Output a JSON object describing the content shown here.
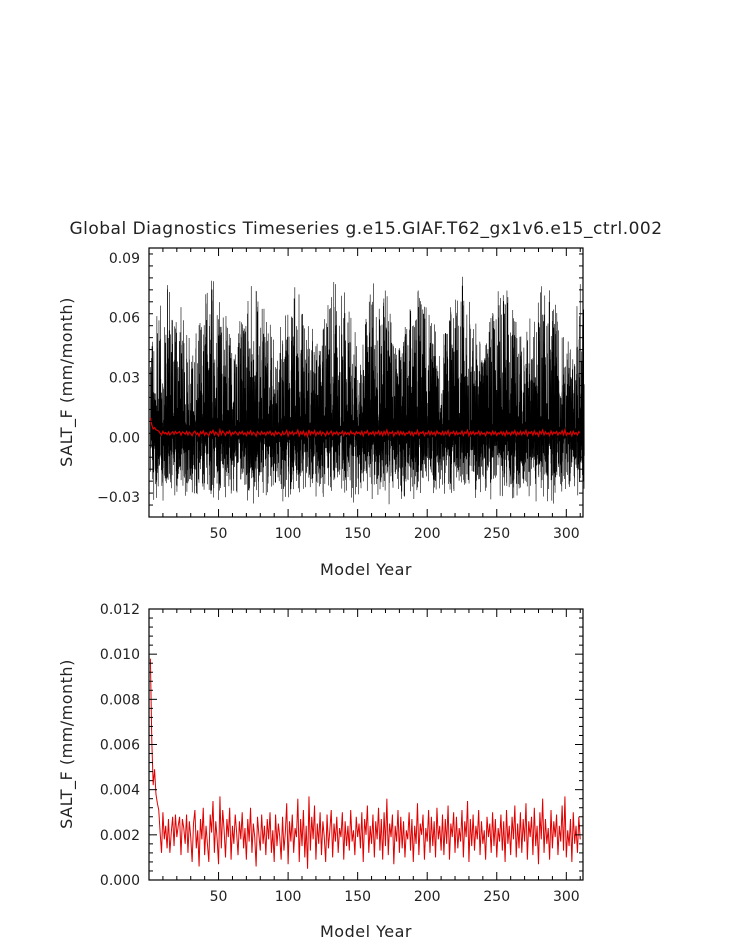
{
  "title": "Global Diagnostics Timeseries g.e15.GIAF.T62_gx1v6.e15_ctrl.002",
  "colors": {
    "monthly": "#000000",
    "annual": "#e00000"
  },
  "chart_data": [
    {
      "type": "line",
      "xlabel": "Model Year",
      "ylabel": "SALT_F (mm/month)",
      "xlim": [
        0,
        312
      ],
      "ylim": [
        -0.04,
        0.095
      ],
      "xticks": [
        50,
        100,
        150,
        200,
        250,
        300
      ],
      "xtick_labels": [
        "50",
        "100",
        "150",
        "200",
        "250",
        "300"
      ],
      "yticks": [
        -0.03,
        0.0,
        0.03,
        0.06,
        0.09
      ],
      "ytick_labels": [
        "−0.03",
        "0.00",
        "0.03",
        "0.06",
        "0.09"
      ],
      "series": [
        {
          "color": "#000000",
          "kind": "monthly",
          "approx_range": [
            -0.035,
            0.082
          ]
        },
        {
          "color": "#e00000",
          "kind": "annual",
          "source": "annual_values"
        }
      ]
    },
    {
      "type": "line",
      "xlabel": "Model Year",
      "ylabel": "SALT_F (mm/month)",
      "xlim": [
        0,
        312
      ],
      "ylim": [
        0.0,
        0.012
      ],
      "xticks": [
        50,
        100,
        150,
        200,
        250,
        300
      ],
      "xtick_labels": [
        "50",
        "100",
        "150",
        "200",
        "250",
        "300"
      ],
      "yticks": [
        0.0,
        0.002,
        0.004,
        0.006,
        0.008,
        0.01,
        0.012
      ],
      "ytick_labels": [
        "0.000",
        "0.002",
        "0.004",
        "0.006",
        "0.008",
        "0.010",
        "0.012"
      ],
      "series": [
        {
          "color": "#e00000",
          "kind": "annual",
          "source": "annual_values"
        }
      ]
    }
  ],
  "annual_values": {
    "x_start": 1,
    "values": [
      0.0098,
      0.0062,
      0.0042,
      0.0049,
      0.0038,
      0.0034,
      0.0031,
      0.0021,
      0.0012,
      0.003,
      0.0018,
      0.0024,
      0.0014,
      0.0027,
      0.0012,
      0.0021,
      0.0028,
      0.0015,
      0.0029,
      0.0019,
      0.0024,
      0.0028,
      0.0011,
      0.0027,
      0.0023,
      0.0016,
      0.0029,
      0.0012,
      0.0026,
      0.0019,
      0.0008,
      0.0025,
      0.0031,
      0.0014,
      0.0022,
      0.0006,
      0.0027,
      0.0018,
      0.0032,
      0.0011,
      0.0024,
      0.0016,
      0.0008,
      0.0029,
      0.0021,
      0.0035,
      0.0012,
      0.0026,
      0.0018,
      0.0007,
      0.0037,
      0.0014,
      0.0031,
      0.0022,
      0.001,
      0.0027,
      0.0019,
      0.0032,
      0.0009,
      0.0024,
      0.0016,
      0.0029,
      0.0021,
      0.0011,
      0.0026,
      0.0018,
      0.003,
      0.0014,
      0.0023,
      0.0009,
      0.0027,
      0.0017,
      0.0032,
      0.0012,
      0.0025,
      0.0019,
      0.0006,
      0.0028,
      0.002,
      0.0013,
      0.0029,
      0.0016,
      0.0024,
      0.0011,
      0.0027,
      0.0018,
      0.003,
      0.0012,
      0.0022,
      0.0008,
      0.0029,
      0.0015,
      0.0025,
      0.0019,
      0.0009,
      0.0028,
      0.0013,
      0.0021,
      0.0034,
      0.0007,
      0.0026,
      0.0017,
      0.0029,
      0.0012,
      0.0023,
      0.0019,
      0.0036,
      0.0008,
      0.0027,
      0.0015,
      0.0031,
      0.001,
      0.0024,
      0.0005,
      0.0037,
      0.0013,
      0.0028,
      0.0018,
      0.0033,
      0.0009,
      0.0025,
      0.0016,
      0.003,
      0.0011,
      0.0026,
      0.0019,
      0.0008,
      0.0029,
      0.0014,
      0.0022,
      0.0031,
      0.001,
      0.0025,
      0.0017,
      0.0028,
      0.0012,
      0.0023,
      0.0019,
      0.003,
      0.0009,
      0.0026,
      0.0015,
      0.0024,
      0.0013,
      0.0031,
      0.0017,
      0.0022,
      0.0011,
      0.0028,
      0.0019,
      0.0025,
      0.0014,
      0.003,
      0.0008,
      0.0027,
      0.002,
      0.0033,
      0.0012,
      0.0024,
      0.0016,
      0.0029,
      0.001,
      0.0026,
      0.0018,
      0.0032,
      0.0013,
      0.0027,
      0.0009,
      0.003,
      0.0015,
      0.0036,
      0.0011,
      0.0025,
      0.0019,
      0.0029,
      0.0007,
      0.0024,
      0.0017,
      0.0031,
      0.0012,
      0.0028,
      0.0014,
      0.0026,
      0.001,
      0.0022,
      0.0018,
      0.003,
      0.0013,
      0.0027,
      0.0008,
      0.0024,
      0.0016,
      0.0034,
      0.0011,
      0.0025,
      0.002,
      0.0029,
      0.0009,
      0.0023,
      0.0017,
      0.0031,
      0.0012,
      0.0028,
      0.0015,
      0.0026,
      0.001,
      0.0032,
      0.0018,
      0.0024,
      0.0013,
      0.0029,
      0.0011,
      0.0027,
      0.0016,
      0.0033,
      0.0009,
      0.0025,
      0.0019,
      0.003,
      0.0012,
      0.0028,
      0.0014,
      0.0023,
      0.0017,
      0.0031,
      0.001,
      0.0026,
      0.0019,
      0.0035,
      0.0008,
      0.0027,
      0.0015,
      0.0029,
      0.0013,
      0.0024,
      0.0018,
      0.0031,
      0.0011,
      0.0026,
      0.0016,
      0.0022,
      0.0009,
      0.0028,
      0.0019,
      0.0025,
      0.0012,
      0.003,
      0.0015,
      0.0027,
      0.001,
      0.0023,
      0.0017,
      0.0029,
      0.0013,
      0.0026,
      0.0008,
      0.0031,
      0.0016,
      0.0024,
      0.0011,
      0.0028,
      0.0018,
      0.0033,
      0.001,
      0.0025,
      0.0014,
      0.003,
      0.0012,
      0.0027,
      0.0017,
      0.0034,
      0.0009,
      0.0026,
      0.0019,
      0.0028,
      0.0011,
      0.0032,
      0.0015,
      0.0024,
      0.0007,
      0.003,
      0.0018,
      0.0036,
      0.0012,
      0.0027,
      0.0016,
      0.0023,
      0.0009,
      0.0031,
      0.0014,
      0.0026,
      0.0019,
      0.0029,
      0.0011,
      0.0024,
      0.0017,
      0.0033,
      0.0013,
      0.0037,
      0.001,
      0.0022,
      0.0015,
      0.0027,
      0.0008,
      0.003,
      0.0016,
      0.0024,
      0.0012,
      0.0028,
      0.0018
    ]
  }
}
